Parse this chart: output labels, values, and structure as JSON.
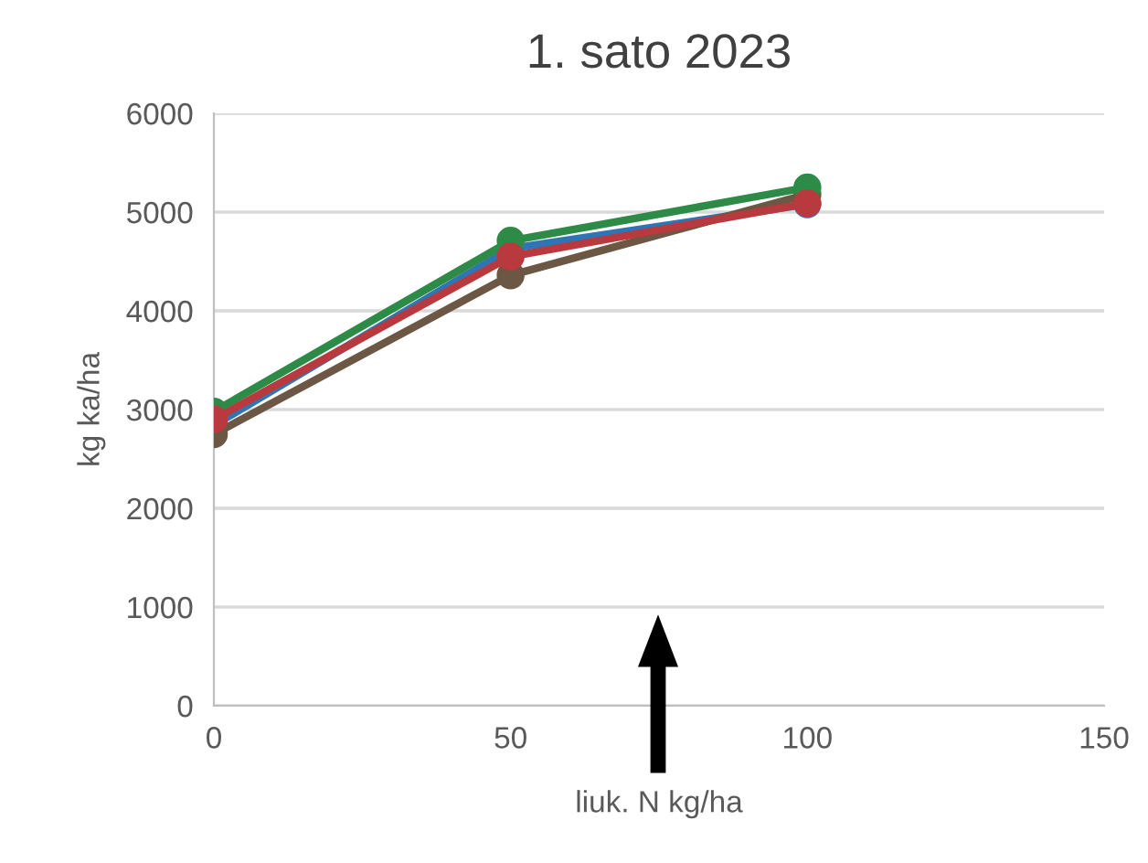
{
  "chart_data": {
    "type": "line",
    "title": "1. sato 2023",
    "xlabel": "liuk. N kg/ha",
    "ylabel": "kg ka/ha",
    "x": [
      0,
      50,
      100
    ],
    "series": [
      {
        "color": "#2f75b5",
        "values": [
          2840,
          4630,
          5080
        ]
      },
      {
        "color": "#6b5744",
        "values": [
          2750,
          4360,
          5180
        ]
      },
      {
        "color": "#2e8b47",
        "values": [
          2980,
          4710,
          5250
        ]
      },
      {
        "color": "#b83a3f",
        "values": [
          2900,
          4550,
          5090
        ]
      }
    ],
    "xlim": [
      0,
      150
    ],
    "xticks": [
      0,
      50,
      100,
      150
    ],
    "ylim": [
      0,
      6000
    ],
    "yticks": [
      0,
      1000,
      2000,
      3000,
      4000,
      5000,
      6000
    ],
    "grid": "y",
    "marker": "circle",
    "line_style": "solid",
    "legend": false
  }
}
